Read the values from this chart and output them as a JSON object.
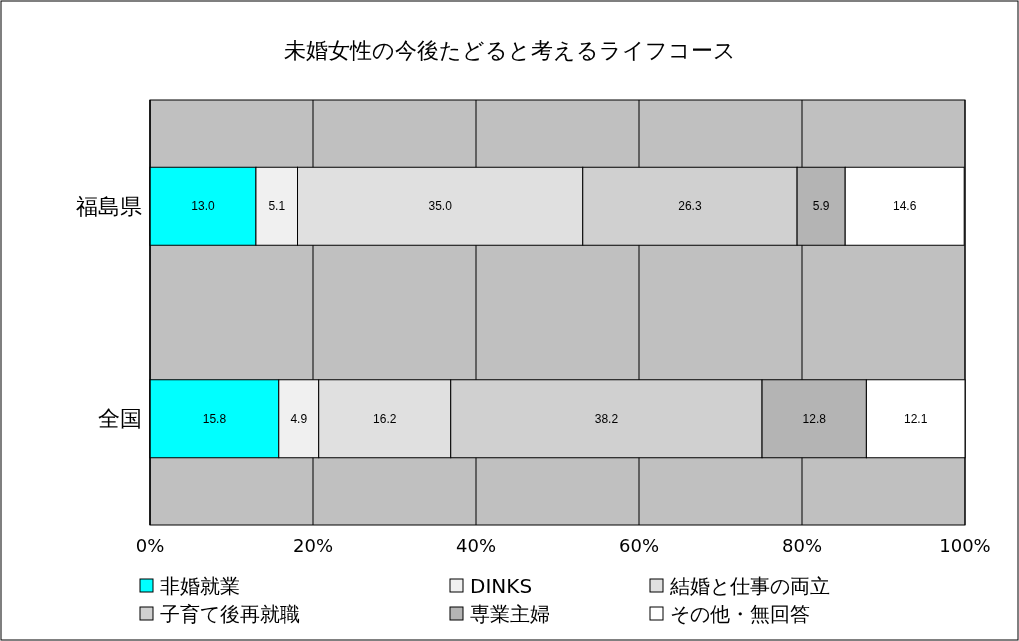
{
  "chart_data": {
    "type": "bar",
    "orientation": "horizontal",
    "stacked": true,
    "title": "未婚女性の今後たどると考えるライフコース",
    "categories": [
      "福島県",
      "全国"
    ],
    "series": [
      {
        "name": "非婚就業",
        "color": "#00ffff",
        "values": [
          13.0,
          15.8
        ],
        "value_labels": [
          "13.0",
          "15.8"
        ]
      },
      {
        "name": "DINKS",
        "color": "#f0f0f0",
        "values": [
          5.1,
          4.9
        ],
        "value_labels": [
          "5.1",
          "4.9"
        ]
      },
      {
        "name": "結婚と仕事の両立",
        "color": "#e0e0e0",
        "values": [
          35.0,
          16.2
        ],
        "value_labels": [
          "35.0",
          "16.2"
        ]
      },
      {
        "name": "子育て後再就職",
        "color": "#d0d0d0",
        "values": [
          26.3,
          38.2
        ],
        "value_labels": [
          "26.3",
          "38.2"
        ]
      },
      {
        "name": "専業主婦",
        "color": "#b4b4b4",
        "values": [
          5.9,
          12.8
        ],
        "value_labels": [
          "5.9",
          "12.8"
        ]
      },
      {
        "name": "その他・無回答",
        "color": "#ffffff",
        "values": [
          14.6,
          12.1
        ],
        "value_labels": [
          "14.6",
          "12.1"
        ]
      }
    ],
    "xlim": [
      0,
      100
    ],
    "xticks": [
      {
        "value": 0,
        "label": "0%"
      },
      {
        "value": 20,
        "label": "20%"
      },
      {
        "value": 40,
        "label": "40%"
      },
      {
        "value": 60,
        "label": "60%"
      },
      {
        "value": 80,
        "label": "80%"
      },
      {
        "value": 100,
        "label": "100%"
      }
    ],
    "grid": "x",
    "legend": "bottom"
  }
}
